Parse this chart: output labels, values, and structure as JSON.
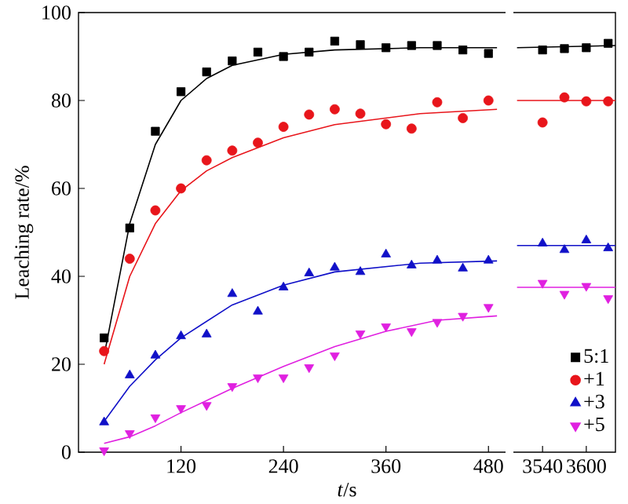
{
  "chart_data": [
    {
      "type": "scatter",
      "xlabel": "*t*/s",
      "ylabel": "Leaching rate/%",
      "xlim": [
        0,
        500
      ],
      "xticks": [
        120,
        240,
        360,
        480
      ],
      "ylim": [
        0,
        100
      ],
      "yticks": [
        0,
        20,
        40,
        60,
        80,
        100
      ],
      "series": [
        {
          "marker": "square",
          "color": "#000000",
          "x": [
            30,
            60,
            90,
            120,
            150,
            180,
            210,
            240,
            270,
            300,
            330,
            360,
            390,
            420,
            450,
            480
          ],
          "values": [
            26,
            51,
            73,
            82,
            86.5,
            89,
            91,
            90,
            91,
            93.5,
            92.7,
            92,
            92.5,
            92.5,
            91.5,
            90.7
          ]
        },
        {
          "marker": "circle",
          "color": "#e8151b",
          "x": [
            30,
            60,
            90,
            120,
            150,
            180,
            210,
            240,
            270,
            300,
            330,
            360,
            390,
            420,
            450,
            480
          ],
          "values": [
            23,
            44,
            55,
            60,
            66.4,
            68.6,
            70.4,
            74,
            76.8,
            78,
            77,
            74.6,
            73.6,
            79.6,
            76,
            80
          ]
        },
        {
          "marker": "triangle",
          "color": "#1010c8",
          "x": [
            30,
            60,
            90,
            120,
            150,
            180,
            210,
            240,
            270,
            300,
            330,
            360,
            390,
            420,
            450,
            480
          ],
          "values": [
            6.8,
            17.5,
            22,
            26.4,
            26.8,
            36,
            32,
            37.5,
            40.7,
            42,
            41,
            45,
            42.5,
            43.6,
            41.8,
            43.6
          ]
        },
        {
          "marker": "triangle down",
          "color": "#e020e0",
          "x": [
            30,
            60,
            90,
            120,
            150,
            180,
            210,
            240,
            270,
            300,
            330,
            360,
            390,
            420,
            450,
            480
          ],
          "values": [
            0.4,
            4.3,
            7.9,
            10,
            10.7,
            15,
            17,
            17,
            19.3,
            22,
            27,
            28.6,
            27.5,
            29.6,
            31,
            33
          ]
        },
        {
          "type": "line",
          "color": "#000000",
          "x": [
            30,
            60,
            90,
            120,
            150,
            180,
            240,
            300,
            400,
            490
          ],
          "values": [
            22,
            52,
            70,
            80,
            85,
            88,
            90.5,
            91.5,
            92,
            92
          ]
        },
        {
          "type": "line",
          "color": "#e8151b",
          "x": [
            30,
            60,
            90,
            120,
            150,
            180,
            240,
            300,
            400,
            490
          ],
          "values": [
            20,
            40,
            52,
            59.5,
            64,
            67,
            71.5,
            74.5,
            77,
            78
          ]
        },
        {
          "type": "line",
          "color": "#1010c8",
          "x": [
            30,
            60,
            90,
            120,
            180,
            240,
            300,
            400,
            490
          ],
          "values": [
            7,
            15,
            21,
            26,
            33.5,
            38,
            41,
            43,
            43.5
          ]
        },
        {
          "type": "line",
          "color": "#e020e0",
          "x": [
            30,
            60,
            90,
            120,
            180,
            240,
            300,
            360,
            420,
            490
          ],
          "values": [
            2,
            3.5,
            6,
            9,
            14.5,
            19.5,
            24,
            27.5,
            30,
            31
          ]
        }
      ]
    },
    {
      "type": "scatter",
      "xlim": [
        3500,
        3640
      ],
      "xticks": [
        3540,
        3600
      ],
      "ylim": [
        0,
        100
      ],
      "tick_labels": "x",
      "legend": "bottom right",
      "series": [
        {
          "name": "5:1",
          "marker": "square",
          "color": "#000000",
          "x": [
            3540,
            3570,
            3600,
            3630
          ],
          "values": [
            91.5,
            91.8,
            92,
            93
          ]
        },
        {
          "name": "+1",
          "marker": "circle",
          "color": "#e8151b",
          "x": [
            3540,
            3570,
            3600,
            3630
          ],
          "values": [
            75,
            80.7,
            79.8,
            79.8
          ]
        },
        {
          "name": "+3",
          "marker": "triangle",
          "color": "#1010c8",
          "x": [
            3540,
            3570,
            3600,
            3630
          ],
          "values": [
            47.5,
            46,
            48.2,
            46.4
          ]
        },
        {
          "name": "+5",
          "marker": "triangle down",
          "color": "#e020e0",
          "x": [
            3540,
            3570,
            3600,
            3630
          ],
          "values": [
            38.5,
            36,
            37.8,
            35
          ]
        },
        {
          "type": "line",
          "color": "#000000",
          "x": [
            3505,
            3640
          ],
          "values": [
            92,
            92.5
          ]
        },
        {
          "type": "line",
          "color": "#e8151b",
          "x": [
            3505,
            3640
          ],
          "values": [
            80,
            80
          ]
        },
        {
          "type": "line",
          "color": "#1010c8",
          "x": [
            3505,
            3640
          ],
          "values": [
            47,
            47
          ]
        },
        {
          "type": "line",
          "color": "#e020e0",
          "x": [
            3505,
            3640
          ],
          "values": [
            37.5,
            37.5
          ]
        }
      ]
    }
  ]
}
